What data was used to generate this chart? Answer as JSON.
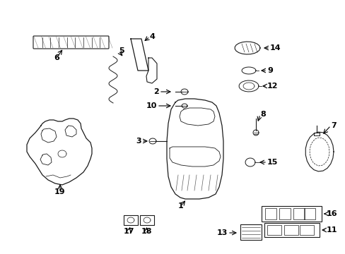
{
  "background_color": "#ffffff",
  "line_color": "#1a1a1a",
  "figsize": [
    4.89,
    3.6
  ],
  "dpi": 100,
  "label_fontsize": 7.5
}
